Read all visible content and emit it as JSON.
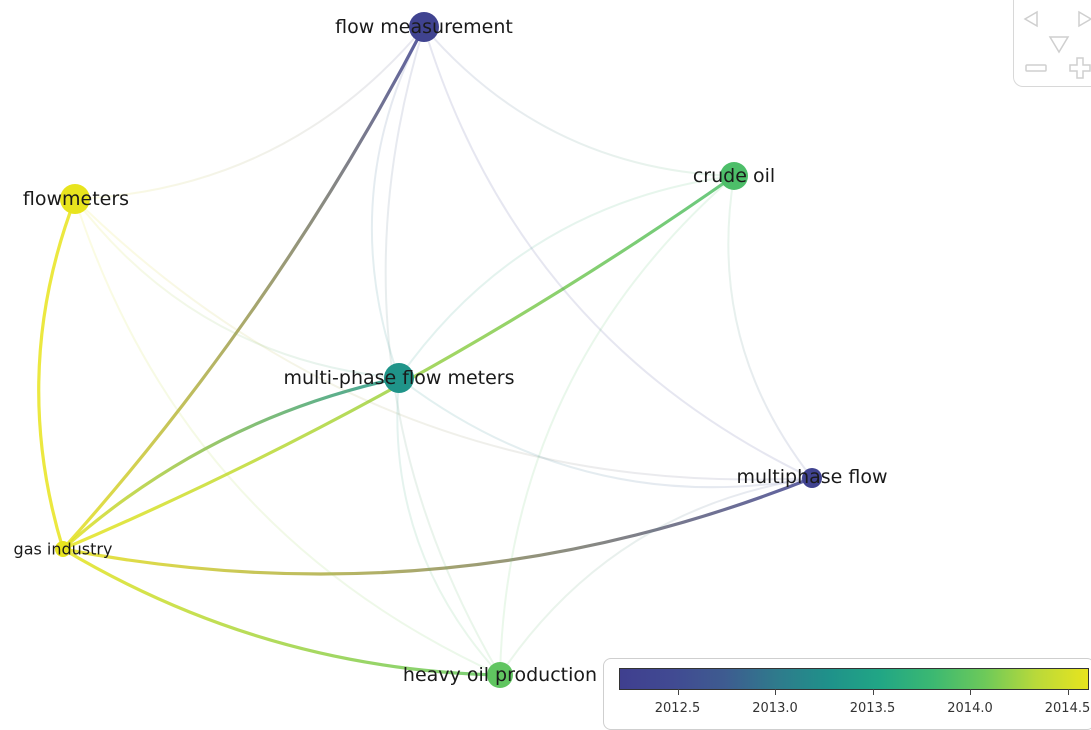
{
  "network": {
    "nodes": [
      {
        "id": "flow_measurement",
        "label": "flow measurement",
        "year": 2012.3
      },
      {
        "id": "flowmeters",
        "label": "flowmeters",
        "year": 2014.6
      },
      {
        "id": "crude_oil",
        "label": "crude oil",
        "year": 2013.9
      },
      {
        "id": "multi_phase",
        "label": "multi-phase flow meters",
        "year": 2013.3
      },
      {
        "id": "multiphase_flow",
        "label": "multiphase flow",
        "year": 2012.3
      },
      {
        "id": "gas_industry",
        "label": "gas industry",
        "year": 2014.6
      },
      {
        "id": "heavy_oil",
        "label": "heavy oil production",
        "year": 2014.0
      }
    ],
    "links": [
      {
        "source": "gas_industry",
        "target": "flowmeters",
        "strength": "strong"
      },
      {
        "source": "gas_industry",
        "target": "flow_measurement",
        "strength": "strong"
      },
      {
        "source": "gas_industry",
        "target": "crude_oil",
        "strength": "strong"
      },
      {
        "source": "gas_industry",
        "target": "multi_phase",
        "strength": "strong"
      },
      {
        "source": "gas_industry",
        "target": "multiphase_flow",
        "strength": "strong"
      },
      {
        "source": "gas_industry",
        "target": "heavy_oil",
        "strength": "strong"
      },
      {
        "source": "flowmeters",
        "target": "flow_measurement",
        "strength": "weak"
      },
      {
        "source": "flowmeters",
        "target": "multi_phase",
        "strength": "weak"
      },
      {
        "source": "flowmeters",
        "target": "multiphase_flow",
        "strength": "weak"
      },
      {
        "source": "flowmeters",
        "target": "heavy_oil",
        "strength": "weak"
      },
      {
        "source": "flow_measurement",
        "target": "crude_oil",
        "strength": "weak"
      },
      {
        "source": "flow_measurement",
        "target": "multiphase_flow",
        "strength": "weak"
      },
      {
        "source": "flow_measurement",
        "target": "heavy_oil",
        "strength": "weak"
      },
      {
        "source": "flow_measurement",
        "target": "multi_phase",
        "strength": "weak"
      },
      {
        "source": "crude_oil",
        "target": "multi_phase",
        "strength": "weak"
      },
      {
        "source": "crude_oil",
        "target": "multiphase_flow",
        "strength": "weak"
      },
      {
        "source": "crude_oil",
        "target": "heavy_oil",
        "strength": "weak"
      },
      {
        "source": "multi_phase",
        "target": "multiphase_flow",
        "strength": "weak"
      },
      {
        "source": "multi_phase",
        "target": "heavy_oil",
        "strength": "weak"
      },
      {
        "source": "multiphase_flow",
        "target": "heavy_oil",
        "strength": "weak"
      }
    ]
  },
  "legend": {
    "min": 2012.2,
    "max": 2014.6,
    "ticks": [
      "2012.5",
      "2013.0",
      "2013.5",
      "2014.0",
      "2014.5"
    ],
    "colorscale": "viridis"
  },
  "nav": {
    "buttons": [
      "left-arrow-icon",
      "right-arrow-icon",
      "down-arrow-icon",
      "zoom-out-icon",
      "zoom-in-icon"
    ]
  }
}
